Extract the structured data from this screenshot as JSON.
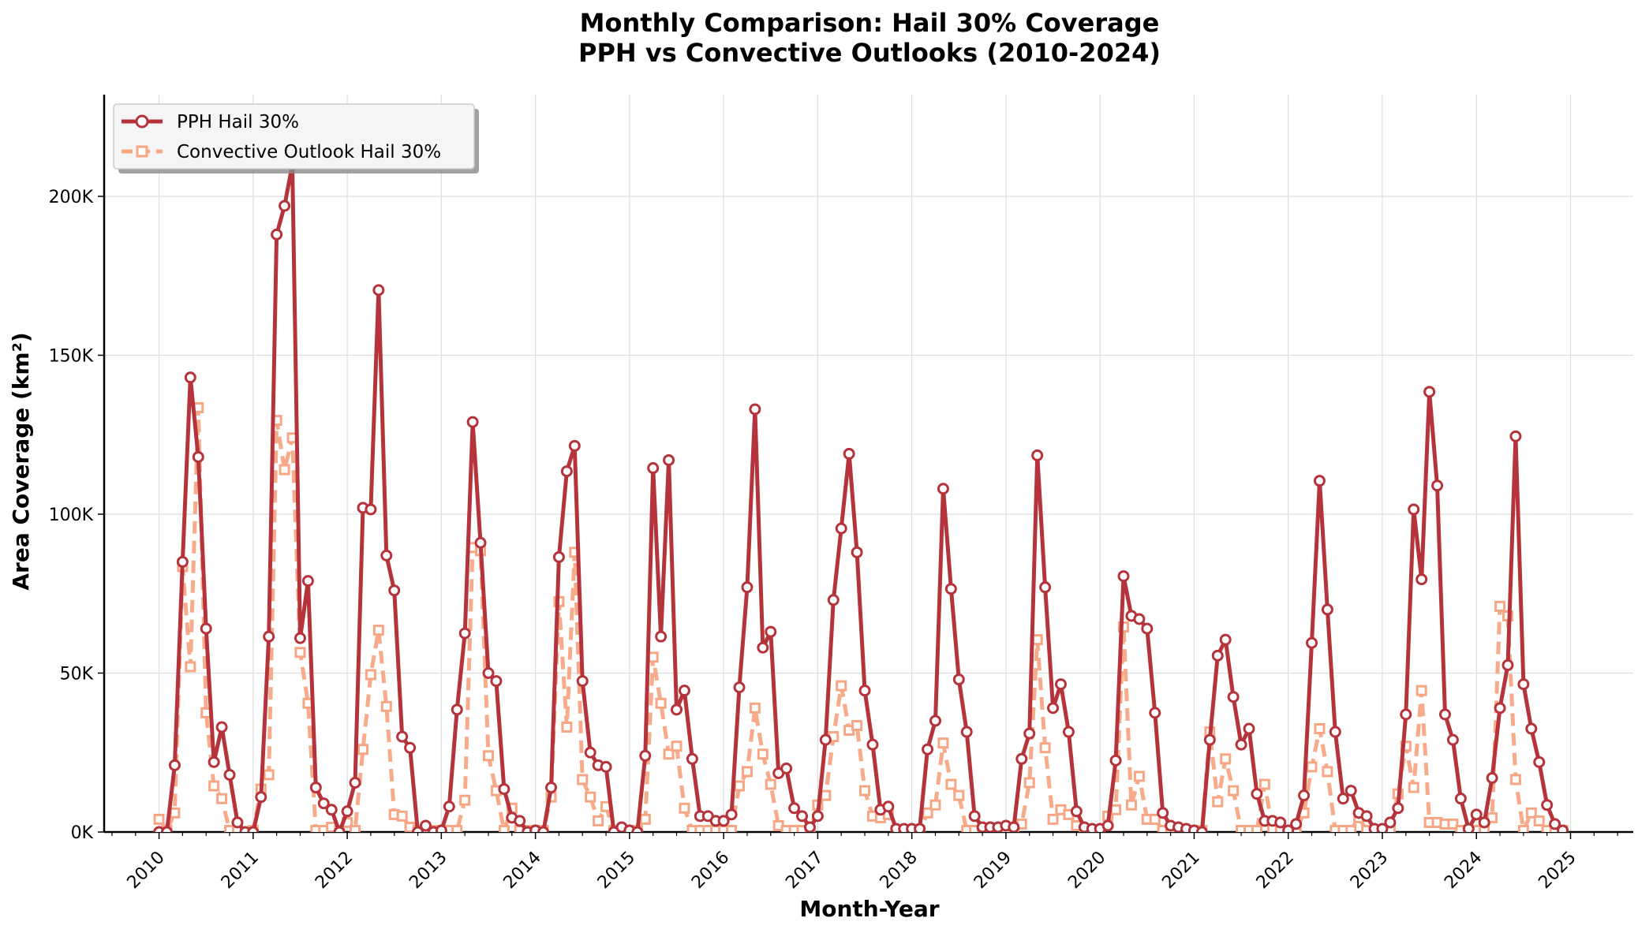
{
  "chart_data": {
    "type": "line",
    "title": "Monthly Comparison: Hail 30% Coverage",
    "subtitle": "PPH vs Convective Outlooks (2010-2024)",
    "xlabel": "Month-Year",
    "ylabel": "Area Coverage (km²)",
    "ylim": [
      0,
      232000
    ],
    "xlim": [
      "2009-06",
      "2025-09"
    ],
    "y_ticks": [
      {
        "value": 0,
        "label": "0K"
      },
      {
        "value": 50000,
        "label": "50K"
      },
      {
        "value": 100000,
        "label": "100K"
      },
      {
        "value": 150000,
        "label": "150K"
      },
      {
        "value": 200000,
        "label": "200K"
      }
    ],
    "x_ticks": [
      "2010",
      "2011",
      "2012",
      "2013",
      "2014",
      "2015",
      "2016",
      "2017",
      "2018",
      "2019",
      "2020",
      "2021",
      "2022",
      "2023",
      "2024",
      "2025"
    ],
    "grid": true,
    "legend_position": "top-left",
    "start_month": "2010-01",
    "series": [
      {
        "name": "PPH Hail 30%",
        "color": "#b5333a",
        "line_style": "solid",
        "marker": "circle",
        "values": [
          0,
          0,
          21000,
          85000,
          143000,
          118000,
          64000,
          22000,
          33000,
          18000,
          3000,
          0,
          0,
          11000,
          61500,
          188000,
          197000,
          210000,
          61000,
          79000,
          14000,
          9000,
          7000,
          0,
          6500,
          15500,
          102000,
          101500,
          170500,
          87000,
          76000,
          30000,
          26500,
          0,
          2000,
          0,
          500,
          8000,
          38500,
          62500,
          129000,
          91000,
          50000,
          47500,
          13500,
          4500,
          3500,
          0,
          500,
          0,
          14000,
          86500,
          113500,
          121500,
          47500,
          25000,
          21000,
          20500,
          0,
          1500,
          500,
          0,
          24000,
          114500,
          61500,
          117000,
          38500,
          44500,
          23000,
          5000,
          5000,
          3500,
          3500,
          5500,
          45500,
          77000,
          133000,
          58000,
          63000,
          18500,
          20000,
          7500,
          5000,
          1500,
          5000,
          29000,
          73000,
          95500,
          119000,
          88000,
          44500,
          27500,
          7000,
          8000,
          1000,
          1000,
          1000,
          1000,
          26000,
          35000,
          108000,
          76500,
          48000,
          31500,
          5000,
          1500,
          1500,
          1500,
          2000,
          1500,
          23000,
          31000,
          118500,
          77000,
          39000,
          46500,
          31500,
          6500,
          1500,
          1000,
          1000,
          2000,
          22500,
          80500,
          68000,
          67000,
          64000,
          37500,
          6000,
          2000,
          1500,
          1000,
          500,
          0,
          29000,
          55500,
          60500,
          42500,
          27500,
          32500,
          12000,
          3500,
          3500,
          3000,
          500,
          2500,
          11500,
          59500,
          110500,
          70000,
          31500,
          10500,
          13000,
          6000,
          5000,
          1000,
          1000,
          3000,
          7500,
          37000,
          101500,
          79500,
          138500,
          109000,
          37000,
          29000,
          10500,
          1000,
          5500,
          3000,
          17000,
          39000,
          52500,
          124500,
          46500,
          32500,
          22000,
          8500,
          2500,
          500
        ]
      },
      {
        "name": "Convective Outlook Hail 30%",
        "color": "#f7a684",
        "line_style": "dashed",
        "marker": "square",
        "values": [
          4000,
          500,
          6000,
          83500,
          52000,
          133500,
          37500,
          14500,
          10500,
          500,
          500,
          0,
          500,
          13500,
          18000,
          129500,
          114000,
          124000,
          56500,
          40500,
          500,
          500,
          1500,
          500,
          3000,
          500,
          26000,
          49500,
          63500,
          39500,
          5500,
          5000,
          1500,
          500,
          500,
          500,
          500,
          500,
          500,
          10000,
          89500,
          88500,
          24000,
          13000,
          500,
          7500,
          500,
          500,
          500,
          500,
          11000,
          72500,
          33000,
          88000,
          16500,
          11000,
          3500,
          8000,
          500,
          500,
          500,
          500,
          4000,
          55000,
          40500,
          24500,
          27000,
          7500,
          500,
          500,
          500,
          500,
          500,
          500,
          14500,
          19000,
          39000,
          24500,
          15000,
          2000,
          500,
          500,
          500,
          500,
          8500,
          11500,
          30000,
          46000,
          32000,
          33500,
          13000,
          5000,
          4500,
          5500,
          500,
          500,
          500,
          500,
          6000,
          8500,
          28000,
          15000,
          11500,
          500,
          500,
          500,
          1000,
          500,
          500,
          500,
          2500,
          15500,
          60500,
          26500,
          4000,
          7000,
          5500,
          2000,
          500,
          500,
          500,
          5000,
          7000,
          64500,
          8500,
          17500,
          4000,
          4000,
          500,
          500,
          500,
          500,
          500,
          500,
          31500,
          9500,
          23000,
          13000,
          500,
          500,
          500,
          15000,
          1000,
          500,
          500,
          500,
          6000,
          20500,
          32500,
          19000,
          500,
          500,
          500,
          4500,
          500,
          500,
          500,
          500,
          12000,
          27000,
          14000,
          44500,
          3000,
          3000,
          2500,
          2500,
          500,
          500,
          500,
          500,
          4500,
          71000,
          68000,
          16500,
          500,
          6000,
          3500,
          500,
          500,
          500
        ]
      }
    ]
  }
}
